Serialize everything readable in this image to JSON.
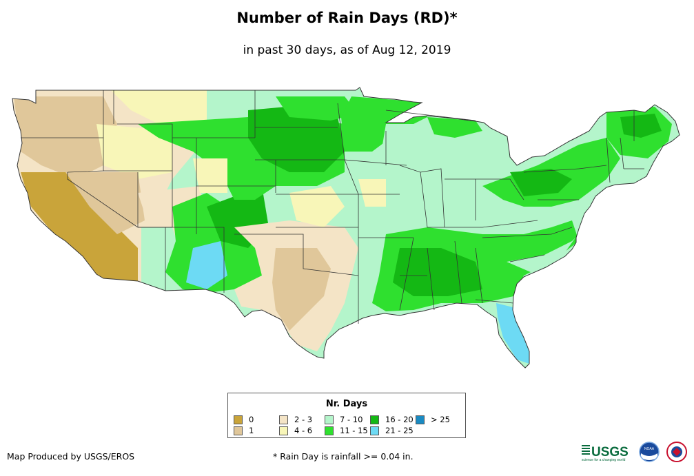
{
  "header": {
    "title": "Number of Rain Days (RD)*",
    "subtitle": "in past 30 days, as of Aug 12, 2019"
  },
  "legend": {
    "title": "Nr. Days",
    "items": [
      {
        "label": "0",
        "color": "#c9a43a"
      },
      {
        "label": "1",
        "color": "#e0c79a"
      },
      {
        "label": "2 - 3",
        "color": "#f4e4c6"
      },
      {
        "label": "4 - 6",
        "color": "#f8f6b8"
      },
      {
        "label": "7 - 10",
        "color": "#b4f5cb"
      },
      {
        "label": "11 - 15",
        "color": "#2fe02f"
      },
      {
        "label": "16 - 20",
        "color": "#14b814"
      },
      {
        "label": "21 - 25",
        "color": "#6ddaf4"
      },
      {
        "label": "> 25",
        "color": "#1a8ac2"
      }
    ]
  },
  "footer": {
    "producer": "Map Produced by USGS/EROS",
    "note": "* Rain Day is rainfall >= 0.04 in."
  },
  "logos": {
    "usgs": "USGS",
    "usgs_tagline": "science for a changing world",
    "noaa": "NOAA"
  },
  "map": {
    "region": "Contiguous United States",
    "state_outlines": true,
    "colors": {
      "state_line": "#333333"
    }
  }
}
